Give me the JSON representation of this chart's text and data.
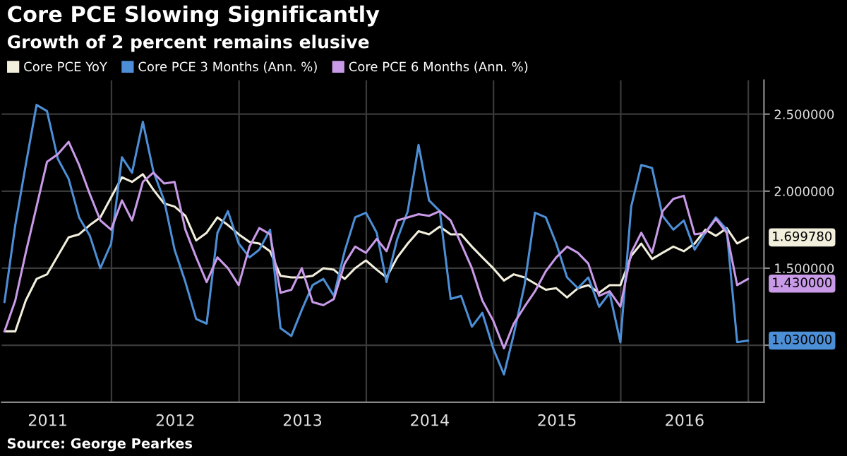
{
  "chart_data": {
    "type": "line",
    "title": "Core PCE Slowing Significantly",
    "subtitle": "Growth of 2 percent remains elusive",
    "x": [
      "2011-02-28",
      "2011-03-31",
      "2011-04-30",
      "2011-05-31",
      "2011-06-30",
      "2011-07-31",
      "2011-08-31",
      "2011-09-30",
      "2011-10-31",
      "2011-11-30",
      "2011-12-31",
      "2012-01-31",
      "2012-02-29",
      "2012-03-31",
      "2012-04-30",
      "2012-05-31",
      "2012-06-30",
      "2012-07-31",
      "2012-08-31",
      "2012-09-30",
      "2012-10-31",
      "2012-11-30",
      "2012-12-31",
      "2013-01-31",
      "2013-02-28",
      "2013-03-31",
      "2013-04-30",
      "2013-05-31",
      "2013-06-30",
      "2013-07-31",
      "2013-08-31",
      "2013-09-30",
      "2013-10-31",
      "2013-11-30",
      "2013-12-31",
      "2014-01-31",
      "2014-02-28",
      "2014-03-31",
      "2014-04-30",
      "2014-05-31",
      "2014-06-30",
      "2014-07-31",
      "2014-08-31",
      "2014-09-30",
      "2014-10-31",
      "2014-11-30",
      "2014-12-31",
      "2015-01-31",
      "2015-02-28",
      "2015-03-31",
      "2015-04-30",
      "2015-05-31",
      "2015-06-30",
      "2015-07-31",
      "2015-08-31",
      "2015-09-30",
      "2015-10-31",
      "2015-11-30",
      "2015-12-31",
      "2016-01-31",
      "2016-02-29",
      "2016-03-31",
      "2016-04-30",
      "2016-05-31",
      "2016-06-30",
      "2016-07-31",
      "2016-08-31",
      "2016-09-30",
      "2016-10-31",
      "2016-11-30",
      "2016-12-31"
    ],
    "series": [
      {
        "name": "Core PCE YoY",
        "color": "#f2efdc",
        "values": [
          1.09,
          1.09,
          1.29,
          1.43,
          1.46,
          1.58,
          1.7,
          1.72,
          1.78,
          1.83,
          1.96,
          2.09,
          2.06,
          2.11,
          2.01,
          1.92,
          1.9,
          1.84,
          1.68,
          1.73,
          1.83,
          1.78,
          1.72,
          1.67,
          1.66,
          1.61,
          1.45,
          1.44,
          1.44,
          1.45,
          1.5,
          1.49,
          1.43,
          1.5,
          1.55,
          1.49,
          1.44,
          1.57,
          1.66,
          1.74,
          1.72,
          1.77,
          1.72,
          1.72,
          1.64,
          1.57,
          1.5,
          1.42,
          1.46,
          1.44,
          1.4,
          1.36,
          1.37,
          1.31,
          1.37,
          1.39,
          1.34,
          1.39,
          1.39,
          1.58,
          1.66,
          1.56,
          1.6,
          1.64,
          1.61,
          1.66,
          1.75,
          1.71,
          1.76,
          1.66,
          1.69978
        ]
      },
      {
        "name": "Core PCE 3 Months (Ann. %)",
        "color": "#4d8fd6",
        "values": [
          1.28,
          1.78,
          2.17,
          2.56,
          2.52,
          2.21,
          2.08,
          1.83,
          1.71,
          1.5,
          1.66,
          2.22,
          2.12,
          2.45,
          2.13,
          1.94,
          1.62,
          1.41,
          1.17,
          1.14,
          1.73,
          1.87,
          1.66,
          1.57,
          1.62,
          1.75,
          1.11,
          1.06,
          1.23,
          1.39,
          1.43,
          1.32,
          1.61,
          1.83,
          1.86,
          1.73,
          1.41,
          1.69,
          1.87,
          2.3,
          1.94,
          1.87,
          1.3,
          1.32,
          1.12,
          1.21,
          0.98,
          0.81,
          1.07,
          1.39,
          1.86,
          1.83,
          1.66,
          1.44,
          1.37,
          1.44,
          1.25,
          1.34,
          1.02,
          1.9,
          2.17,
          2.15,
          1.84,
          1.75,
          1.81,
          1.62,
          1.73,
          1.83,
          1.75,
          1.02,
          1.03
        ]
      },
      {
        "name": "Core PCE 6 Months (Ann. %)",
        "color": "#c99ae8",
        "values": [
          1.09,
          1.29,
          1.6,
          1.9,
          2.19,
          2.24,
          2.32,
          2.17,
          1.98,
          1.81,
          1.75,
          1.94,
          1.81,
          2.06,
          2.12,
          2.05,
          2.06,
          1.75,
          1.57,
          1.41,
          1.57,
          1.5,
          1.39,
          1.64,
          1.76,
          1.72,
          1.34,
          1.36,
          1.5,
          1.28,
          1.26,
          1.3,
          1.53,
          1.64,
          1.6,
          1.69,
          1.61,
          1.81,
          1.83,
          1.85,
          1.84,
          1.87,
          1.81,
          1.66,
          1.5,
          1.29,
          1.16,
          0.98,
          1.14,
          1.25,
          1.35,
          1.48,
          1.57,
          1.64,
          1.6,
          1.53,
          1.32,
          1.35,
          1.25,
          1.6,
          1.73,
          1.6,
          1.87,
          1.95,
          1.97,
          1.72,
          1.73,
          1.82,
          1.73,
          1.39,
          1.43
        ]
      }
    ],
    "xlim": [
      "2011-02-20",
      "2017-02-15"
    ],
    "xticks": [
      {
        "value": "2011-07-02",
        "label": "2011"
      },
      {
        "value": "2012-01-01",
        "label": null
      },
      {
        "value": "2012-07-02",
        "label": "2012"
      },
      {
        "value": "2013-01-01",
        "label": null
      },
      {
        "value": "2013-07-02",
        "label": "2013"
      },
      {
        "value": "2014-01-01",
        "label": null
      },
      {
        "value": "2014-07-02",
        "label": "2014"
      },
      {
        "value": "2015-01-01",
        "label": null
      },
      {
        "value": "2015-07-02",
        "label": "2015"
      },
      {
        "value": "2016-01-01",
        "label": null
      },
      {
        "value": "2016-07-02",
        "label": "2016"
      },
      {
        "value": "2017-01-01",
        "label": null
      }
    ],
    "ylim": [
      0.63,
      2.72
    ],
    "yticks": [
      {
        "value": 1.0,
        "label": null
      },
      {
        "value": 1.5,
        "label": "1.500000"
      },
      {
        "value": 2.0,
        "label": "2.000000"
      },
      {
        "value": 2.5,
        "label": "2.500000"
      }
    ],
    "grid": true,
    "legend": "top left",
    "annotations": [
      {
        "text": "1.699780",
        "x": "2016-12-31",
        "y": 1.69978
      },
      {
        "text": "1.030000",
        "x": "2016-12-31",
        "y": 1.03
      },
      {
        "text": "1.430000",
        "x": "2016-12-31",
        "y": 1.43
      },
      "Source: George Pearkes"
    ]
  }
}
